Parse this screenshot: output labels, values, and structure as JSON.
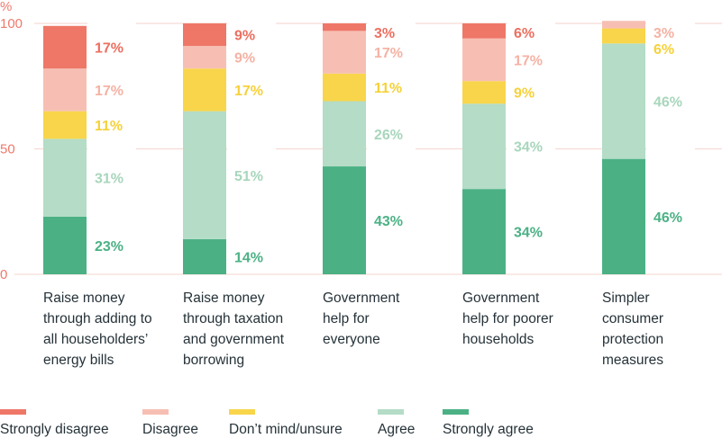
{
  "chart_data": {
    "type": "bar",
    "stacked": true,
    "title": "",
    "xlabel": "",
    "ylabel": "%",
    "ylim": [
      0,
      100
    ],
    "yticks": [
      0,
      50,
      100
    ],
    "grid": true,
    "legend_position": "bottom",
    "categories": [
      "Raise money through adding to all householders’ energy bills",
      "Raise money through taxation and government borrowing",
      "Government help for everyone",
      "Government help for poorer households",
      "Simpler consumer protection measures"
    ],
    "category_lines": [
      [
        "Raise money",
        "through adding to",
        "all householders’",
        "energy bills"
      ],
      [
        "Raise money",
        "through taxation",
        "and government",
        "borrowing"
      ],
      [
        "Government",
        "help for",
        "everyone"
      ],
      [
        "Government",
        "help for poorer",
        "households"
      ],
      [
        "Simpler",
        "consumer",
        "protection",
        "measures"
      ]
    ],
    "series": [
      {
        "name": "Strongly agree",
        "color": "#4bb185",
        "values": [
          23,
          14,
          43,
          34,
          46
        ]
      },
      {
        "name": "Agree",
        "color": "#b4dcc6",
        "values": [
          31,
          51,
          26,
          34,
          46
        ]
      },
      {
        "name": "Don’t mind/unsure",
        "color": "#f8d54a",
        "values": [
          11,
          17,
          11,
          9,
          6
        ]
      },
      {
        "name": "Disagree",
        "color": "#f7bfb3",
        "values": [
          17,
          9,
          17,
          17,
          3
        ]
      },
      {
        "name": "Strongly disagree",
        "color": "#ee7768",
        "values": [
          17,
          9,
          3,
          6,
          0
        ]
      }
    ],
    "label_colors": {
      "Strongly agree": "#4bb185",
      "Agree": "#a8d6bc",
      "Don’t mind/unsure": "#f6d13a",
      "Disagree": "#f5b2a4",
      "Strongly disagree": "#ec6f60"
    },
    "legend": [
      {
        "name": "Strongly disagree",
        "color": "#ee7768"
      },
      {
        "name": "Disagree",
        "color": "#f7bfb3"
      },
      {
        "name": "Don’t mind/unsure",
        "color": "#f8d54a"
      },
      {
        "name": "Agree",
        "color": "#b4dcc6"
      },
      {
        "name": "Strongly agree",
        "color": "#4bb185"
      }
    ]
  }
}
